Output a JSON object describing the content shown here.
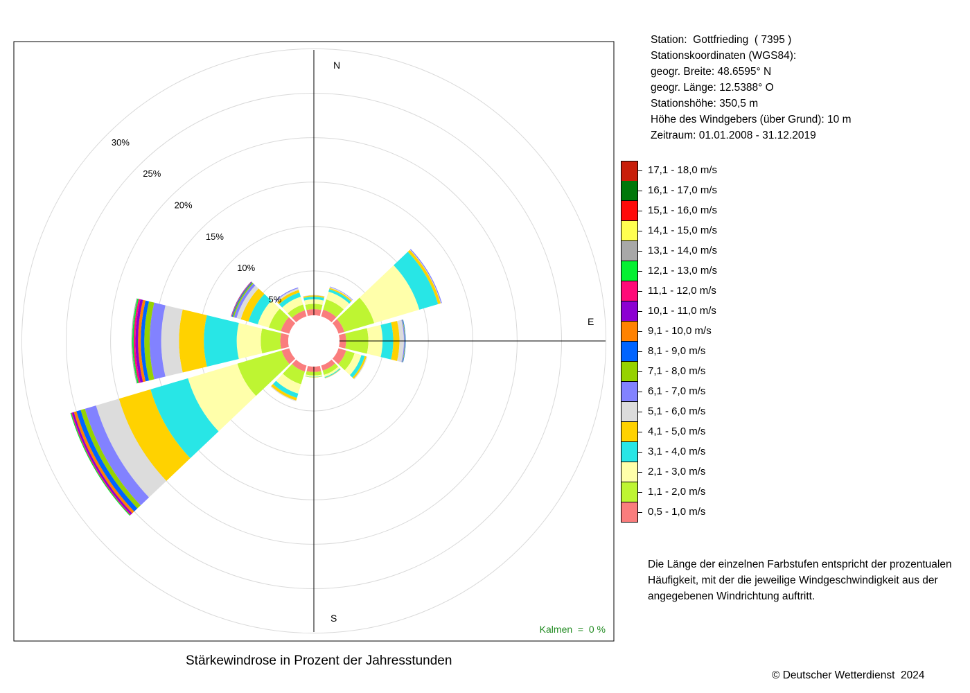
{
  "chart_data": {
    "type": "windrose",
    "title": "Stärkewindrose in Prozent der Jahresstunden",
    "radial_axis": {
      "max": 30,
      "ticks": [
        "5%",
        "10%",
        "15%",
        "20%",
        "25%",
        "30%"
      ],
      "tick_values": [
        5,
        10,
        15,
        20,
        25,
        30
      ]
    },
    "directions": [
      "N",
      "E",
      "S"
    ],
    "calm": "Kalmen  =  0 %",
    "sectors": [
      {
        "deg": 0,
        "values": [
          0.7,
          0.6,
          0.5,
          0.3,
          0.15,
          0.05
        ]
      },
      {
        "deg": 30,
        "values": [
          0.8,
          1.2,
          0.9,
          0.3,
          0.15,
          0.1,
          0.05
        ]
      },
      {
        "deg": 60,
        "values": [
          0.7,
          3.5,
          5.3,
          2.2,
          0.3,
          0.05,
          0.1
        ]
      },
      {
        "deg": 90,
        "values": [
          0.75,
          2.5,
          1.6,
          1.2,
          0.7,
          0.5,
          0.1,
          0.05,
          0.05
        ]
      },
      {
        "deg": 120,
        "values": [
          0.9,
          1.0,
          0.8,
          0.4,
          0.2,
          0.1
        ]
      },
      {
        "deg": 150,
        "values": [
          0.6,
          0.5,
          0.25,
          0.1,
          0.05,
          0.03
        ]
      },
      {
        "deg": 180,
        "values": [
          0.6,
          0.4,
          0.15,
          0.05,
          0.03
        ]
      },
      {
        "deg": 210,
        "values": [
          0.7,
          1.5,
          1.1,
          0.5,
          0.3,
          0.1
        ]
      },
      {
        "deg": 240,
        "values": [
          0.9,
          5.2,
          5.8,
          4.4,
          3.7,
          2.7,
          1.3,
          0.5,
          0.5,
          0.3,
          0.2,
          0.1,
          0.1
        ]
      },
      {
        "deg": 270,
        "values": [
          0.9,
          2.2,
          2.7,
          3.7,
          2.8,
          2.0,
          1.3,
          0.6,
          0.4,
          0.3,
          0.3,
          0.2,
          0.15,
          0.1
        ]
      },
      {
        "deg": 300,
        "values": [
          1.0,
          1.4,
          1.3,
          1.1,
          0.9,
          0.5,
          0.3,
          0.15,
          0.1,
          0.05,
          0.05
        ]
      },
      {
        "deg": 330,
        "values": [
          0.7,
          0.7,
          0.9,
          0.5,
          0.3,
          0.2,
          0.1
        ]
      }
    ]
  },
  "legend": [
    {
      "label": "17,1 - 18,0 m/s",
      "color": "#c81e0a"
    },
    {
      "label": "16,1 - 17,0 m/s",
      "color": "#00780a"
    },
    {
      "label": "15,1 - 16,0 m/s",
      "color": "#ff0a0a"
    },
    {
      "label": "14,1 - 15,0 m/s",
      "color": "#ffff50"
    },
    {
      "label": "13,1 - 14,0 m/s",
      "color": "#a8a8a8"
    },
    {
      "label": "12,1 - 13,0 m/s",
      "color": "#05f032"
    },
    {
      "label": "11,1 - 12,0 m/s",
      "color": "#ff0a78"
    },
    {
      "label": "10,1 - 11,0 m/s",
      "color": "#8c00d2"
    },
    {
      "label": "9,1 - 10,0 m/s",
      "color": "#ff8200"
    },
    {
      "label": "8,1 - 9,0 m/s",
      "color": "#0064ff"
    },
    {
      "label": "7,1 - 8,0 m/s",
      "color": "#96d200"
    },
    {
      "label": "6,1 - 7,0 m/s",
      "color": "#8282ff"
    },
    {
      "label": "5,1 - 6,0 m/s",
      "color": "#dcdcdc"
    },
    {
      "label": "4,1 - 5,0 m/s",
      "color": "#ffd200"
    },
    {
      "label": "3,1 - 4,0 m/s",
      "color": "#28e6e6"
    },
    {
      "label": "2,1 - 3,0 m/s",
      "color": "#ffffaa"
    },
    {
      "label": "1,1 - 2,0 m/s",
      "color": "#bef532"
    },
    {
      "label": "0,5 - 1,0 m/s",
      "color": "#fa7d7d"
    }
  ],
  "station": {
    "line1": "Station:  Gottfrieding  ( 7395 )",
    "line2": "Stationskoordinaten (WGS84):",
    "line3": "geogr. Breite: 48.6595° N",
    "line4": "geogr. Länge: 12.5388° O",
    "line5": "Stationshöhe: 350,5 m",
    "line6": "Höhe des Windgebers (über Grund): 10 m",
    "line7": "Zeitraum: 01.01.2008 - 31.12.2019"
  },
  "note": "Die Länge der einzelnen Farbstufen entspricht der prozentualen Häufigkeit, mit der die jeweilige Windgeschwindigkeit aus der angegebenen Windrichtung auftritt.",
  "copyright": "© Deutscher Wetterdienst  2024"
}
